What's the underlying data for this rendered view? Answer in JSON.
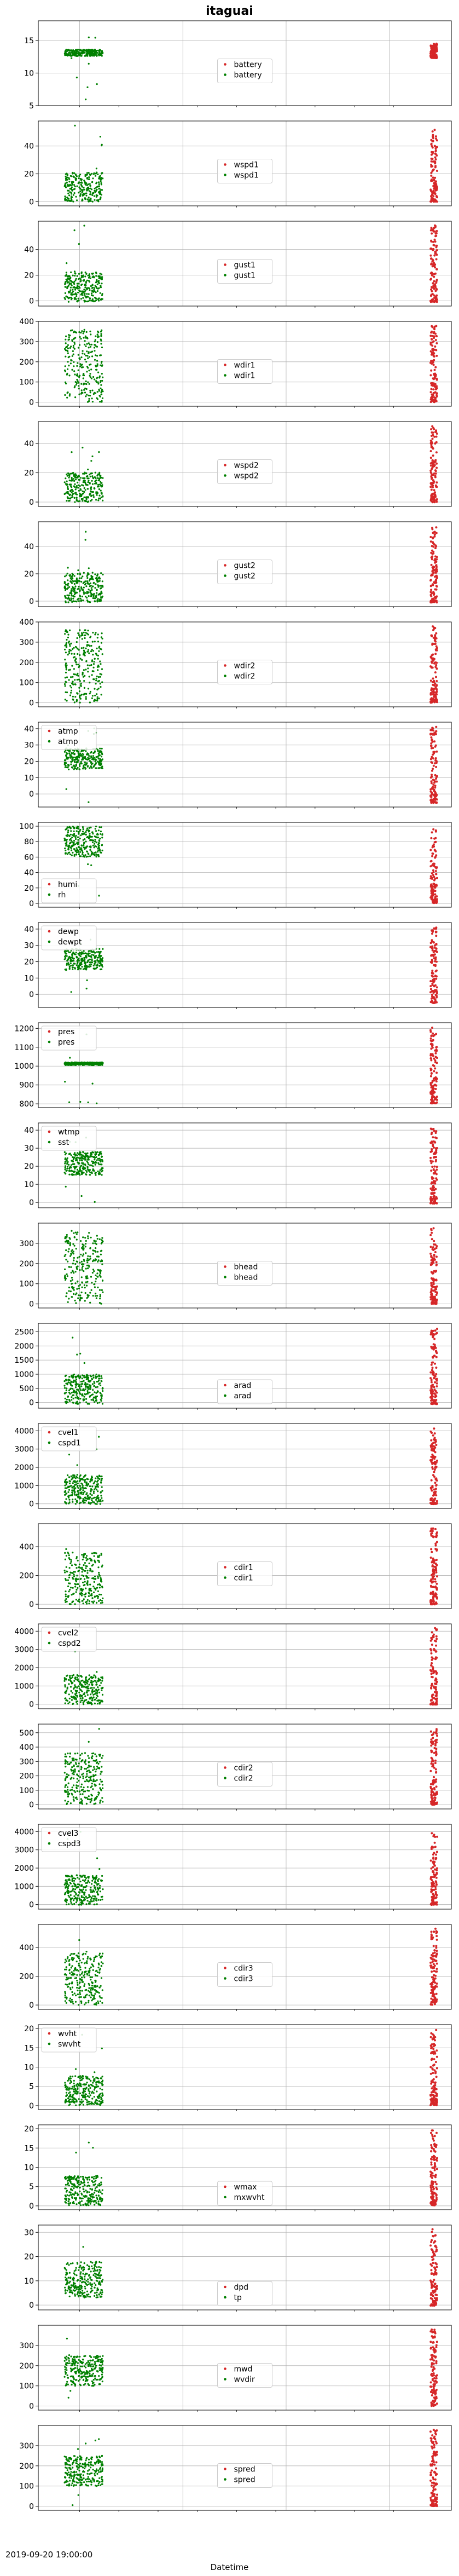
{
  "figure": {
    "title": "itaguai",
    "xlabel": "Datetime",
    "first_xtick": "2019-09-20 19:00:00",
    "colors": {
      "series1": "#d62728",
      "series2": "#008000",
      "grid": "#b0b0b0",
      "axis": "#000000"
    }
  },
  "chart_data": [
    {
      "type": "scatter",
      "ylim": [
        5,
        18
      ],
      "yticks": [
        5,
        10,
        15
      ],
      "grid": true,
      "legend": "center",
      "legend_labels": [
        "battery",
        "battery"
      ],
      "series": [
        {
          "name": "battery",
          "values": "cluster near 13.3 on the right"
        },
        {
          "name": "battery",
          "values": "band near 13.0 on the left"
        }
      ]
    },
    {
      "type": "scatter",
      "ylim": [
        -3,
        58
      ],
      "yticks": [
        0,
        20,
        40
      ],
      "grid": true,
      "legend": "center",
      "legend_labels": [
        "wspd1",
        "wspd1"
      ],
      "series": [
        {
          "name": "wspd1",
          "values": "0–55"
        },
        {
          "name": "wspd1",
          "values": "0–15, outliers to 55"
        }
      ]
    },
    {
      "type": "scatter",
      "ylim": [
        -4,
        62
      ],
      "yticks": [
        0,
        20,
        40
      ],
      "grid": true,
      "legend": "center",
      "legend_labels": [
        "gust1",
        "gust1"
      ],
      "series": [
        {
          "name": "gust1",
          "values": "0–60"
        },
        {
          "name": "gust1",
          "values": "0–15, outliers to 55"
        }
      ]
    },
    {
      "type": "scatter",
      "ylim": [
        -20,
        400
      ],
      "yticks": [
        0,
        100,
        200,
        300,
        400
      ],
      "grid": true,
      "legend": "center",
      "legend_labels": [
        "wdir1",
        "wdir1"
      ],
      "series": [
        {
          "name": "wdir1",
          "values": "0–360"
        },
        {
          "name": "wdir1",
          "values": "0–360"
        }
      ]
    },
    {
      "type": "scatter",
      "ylim": [
        -3,
        55
      ],
      "yticks": [
        0,
        20,
        40
      ],
      "grid": true,
      "legend": "center",
      "legend_labels": [
        "wspd2",
        "wspd2"
      ],
      "series": [
        {
          "name": "wspd2",
          "values": "0–50"
        },
        {
          "name": "wspd2",
          "values": "0–15, outliers to 50"
        }
      ]
    },
    {
      "type": "scatter",
      "ylim": [
        -4,
        58
      ],
      "yticks": [
        0,
        20,
        40
      ],
      "grid": true,
      "legend": "center",
      "legend_labels": [
        "gust2",
        "gust2"
      ],
      "series": [
        {
          "name": "gust2",
          "values": "0–55"
        },
        {
          "name": "gust2",
          "values": "0–15, outliers to 45"
        }
      ]
    },
    {
      "type": "scatter",
      "ylim": [
        -20,
        400
      ],
      "yticks": [
        0,
        100,
        200,
        300,
        400
      ],
      "grid": true,
      "legend": "center",
      "legend_labels": [
        "wdir2",
        "wdir2"
      ],
      "series": [
        {
          "name": "wdir2",
          "values": "0–360"
        },
        {
          "name": "wdir2",
          "values": "0–360"
        }
      ]
    },
    {
      "type": "scatter",
      "ylim": [
        -8,
        44
      ],
      "yticks": [
        0,
        10,
        20,
        30,
        40
      ],
      "grid": true,
      "legend": "top-left",
      "legend_labels": [
        "atmp",
        "atmp"
      ],
      "series": [
        {
          "name": "atmp",
          "values": "0–42"
        },
        {
          "name": "atmp",
          "values": "20–27"
        }
      ]
    },
    {
      "type": "scatter",
      "ylim": [
        -5,
        105
      ],
      "yticks": [
        0,
        20,
        40,
        60,
        80,
        100
      ],
      "grid": true,
      "legend": "lower-left",
      "legend_labels": [
        "humi",
        "rh"
      ],
      "series": [
        {
          "name": "humi",
          "values": "0–100"
        },
        {
          "name": "rh",
          "values": "60–100"
        }
      ]
    },
    {
      "type": "scatter",
      "ylim": [
        -8,
        44
      ],
      "yticks": [
        0,
        10,
        20,
        30,
        40
      ],
      "grid": true,
      "legend": "top-left",
      "legend_labels": [
        "dewp",
        "dewpt"
      ],
      "series": [
        {
          "name": "dewp",
          "values": "0–42"
        },
        {
          "name": "dewpt",
          "values": "5–25"
        }
      ]
    },
    {
      "type": "scatter",
      "ylim": [
        780,
        1230
      ],
      "yticks": [
        800,
        900,
        1000,
        1100,
        1200
      ],
      "grid": true,
      "legend": "top-left",
      "legend_labels": [
        "pres",
        "pres"
      ],
      "series": [
        {
          "name": "pres",
          "values": "800–1220"
        },
        {
          "name": "pres",
          "values": "~1013"
        }
      ]
    },
    {
      "type": "scatter",
      "ylim": [
        -3,
        44
      ],
      "yticks": [
        0,
        10,
        20,
        30,
        40
      ],
      "grid": true,
      "legend": "top-left",
      "legend_labels": [
        "wtmp",
        "sst"
      ],
      "series": [
        {
          "name": "wtmp",
          "values": "0–40"
        },
        {
          "name": "sst",
          "values": "18–27"
        }
      ]
    },
    {
      "type": "scatter",
      "ylim": [
        -20,
        400
      ],
      "yticks": [
        0,
        100,
        200,
        300
      ],
      "grid": true,
      "legend": "center",
      "legend_labels": [
        "bhead",
        "bhead"
      ],
      "series": [
        {
          "name": "bhead",
          "values": "0–360"
        },
        {
          "name": "bhead",
          "values": "0–360"
        }
      ]
    },
    {
      "type": "scatter",
      "ylim": [
        -200,
        2800
      ],
      "yticks": [
        0,
        500,
        1000,
        1500,
        2000,
        2500
      ],
      "grid": true,
      "legend": "lower-center",
      "legend_labels": [
        "arad",
        "arad"
      ],
      "series": [
        {
          "name": "arad",
          "values": "0–2700"
        },
        {
          "name": "arad",
          "values": "0–2500"
        }
      ]
    },
    {
      "type": "scatter",
      "ylim": [
        -250,
        4400
      ],
      "yticks": [
        0,
        1000,
        2000,
        3000,
        4000
      ],
      "grid": true,
      "legend": "top-left",
      "legend_labels": [
        "cvel1",
        "cspd1"
      ],
      "series": [
        {
          "name": "cvel1",
          "values": "0–4200"
        },
        {
          "name": "cspd1",
          "values": "0–2500"
        }
      ]
    },
    {
      "type": "scatter",
      "ylim": [
        -30,
        560
      ],
      "yticks": [
        0,
        200,
        400
      ],
      "grid": true,
      "legend": "center",
      "legend_labels": [
        "cdir1",
        "cdir1"
      ],
      "series": [
        {
          "name": "cdir1",
          "values": "0–520"
        },
        {
          "name": "cdir1",
          "values": "0–360"
        }
      ]
    },
    {
      "type": "scatter",
      "ylim": [
        -250,
        4400
      ],
      "yticks": [
        0,
        1000,
        2000,
        3000,
        4000
      ],
      "grid": true,
      "legend": "top-left",
      "legend_labels": [
        "cvel2",
        "cspd2"
      ],
      "series": [
        {
          "name": "cvel2",
          "values": "0–4200"
        },
        {
          "name": "cspd2",
          "values": "0–2500"
        }
      ]
    },
    {
      "type": "scatter",
      "ylim": [
        -30,
        560
      ],
      "yticks": [
        0,
        100,
        200,
        300,
        400,
        500
      ],
      "grid": true,
      "legend": "center",
      "legend_labels": [
        "cdir2",
        "cdir2"
      ],
      "series": [
        {
          "name": "cdir2",
          "values": "0–520"
        },
        {
          "name": "cdir2",
          "values": "0–360"
        }
      ]
    },
    {
      "type": "scatter",
      "ylim": [
        -250,
        4400
      ],
      "yticks": [
        0,
        1000,
        2000,
        3000,
        4000
      ],
      "grid": true,
      "legend": "top-left",
      "legend_labels": [
        "cvel3",
        "cspd3"
      ],
      "series": [
        {
          "name": "cvel3",
          "values": "0–4200"
        },
        {
          "name": "cspd3",
          "values": "0–2500"
        }
      ]
    },
    {
      "type": "scatter",
      "ylim": [
        -30,
        560
      ],
      "yticks": [
        0,
        200,
        400
      ],
      "grid": true,
      "legend": "center",
      "legend_labels": [
        "cdir3",
        "cdir3"
      ],
      "series": [
        {
          "name": "cdir3",
          "values": "0–520"
        },
        {
          "name": "cdir3",
          "values": "0–360"
        }
      ]
    },
    {
      "type": "scatter",
      "ylim": [
        -1,
        21
      ],
      "yticks": [
        0,
        5,
        10,
        15,
        20
      ],
      "grid": true,
      "legend": "top-left",
      "legend_labels": [
        "wvht",
        "swvht"
      ],
      "series": [
        {
          "name": "wvht",
          "values": "0–20"
        },
        {
          "name": "swvht",
          "values": "0–5"
        }
      ]
    },
    {
      "type": "scatter",
      "ylim": [
        -1,
        21
      ],
      "yticks": [
        0,
        5,
        10,
        15,
        20
      ],
      "grid": true,
      "legend": "lower-center",
      "legend_labels": [
        "wmax",
        "mxwvht"
      ],
      "series": [
        {
          "name": "wmax",
          "values": "0–20"
        },
        {
          "name": "mxwvht",
          "values": "0–20"
        }
      ]
    },
    {
      "type": "scatter",
      "ylim": [
        -2,
        33
      ],
      "yticks": [
        0,
        10,
        20,
        30
      ],
      "grid": true,
      "legend": "lower-center",
      "legend_labels": [
        "dpd",
        "tp"
      ],
      "series": [
        {
          "name": "dpd",
          "values": "0–30"
        },
        {
          "name": "tp",
          "values": "3–20"
        }
      ]
    },
    {
      "type": "scatter",
      "ylim": [
        -20,
        400
      ],
      "yticks": [
        0,
        100,
        200,
        300
      ],
      "grid": true,
      "legend": "center",
      "legend_labels": [
        "mwd",
        "wvdir"
      ],
      "series": [
        {
          "name": "mwd",
          "values": "0–380"
        },
        {
          "name": "wvdir",
          "values": "50–360"
        }
      ]
    },
    {
      "type": "scatter",
      "ylim": [
        -20,
        400
      ],
      "yticks": [
        0,
        100,
        200,
        300
      ],
      "grid": true,
      "legend": "center",
      "legend_labels": [
        "spred",
        "spred"
      ],
      "series": [
        {
          "name": "spred",
          "values": "0–380"
        },
        {
          "name": "spred",
          "values": "0–360"
        }
      ]
    }
  ]
}
